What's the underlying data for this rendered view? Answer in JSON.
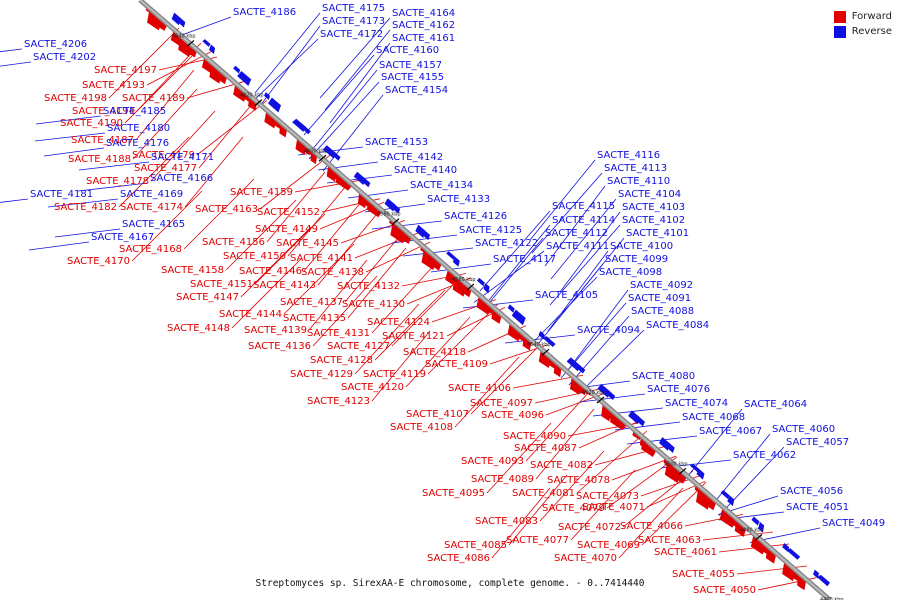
{
  "legend": {
    "forward": "Forward",
    "reverse": "Reverse",
    "forward_color": "#e00000",
    "reverse_color": "#1010e0"
  },
  "caption": "Streptomyces sp. SirexAA-E chromosome, complete genome. - 0..7414440",
  "ticks": [
    "4640 kbp",
    "4620 kbp",
    "4600 kbp",
    "4580 kbp",
    "4560 kbp",
    "4540 kbp",
    "4520 kbp",
    "4500 kbp",
    "4480 kbp",
    "4460 kbp"
  ],
  "forward_labels": [
    "SACTE_4197",
    "SACTE_4193",
    "SACTE_4198",
    "SACTE_4189",
    "SACTE_4194",
    "SACTE_4190",
    "SACTE_4187",
    "SACTE_4188",
    "SACTE_4179",
    "SACTE_4177",
    "SACTE_4178",
    "SACTE_4182",
    "SACTE_4174",
    "SACTE_4159",
    "SACTE_4163",
    "SACTE_4152",
    "SACTE_4149",
    "SACTE_4168",
    "SACTE_4156",
    "SACTE_4145",
    "SACTE_4170",
    "SACTE_4150",
    "SACTE_4141",
    "SACTE_4158",
    "SACTE_4146",
    "SACTE_4138",
    "SACTE_4151",
    "SACTE_4143",
    "SACTE_4132",
    "SACTE_4147",
    "SACTE_4137",
    "SACTE_4130",
    "SACTE_4144",
    "SACTE_4135",
    "SACTE_4124",
    "SACTE_4148",
    "SACTE_4139",
    "SACTE_4131",
    "SACTE_4127",
    "SACTE_4121",
    "SACTE_4136",
    "SACTE_4128",
    "SACTE_4118",
    "SACTE_4129",
    "SACTE_4119",
    "SACTE_4109",
    "SACTE_4120",
    "SACTE_4106",
    "SACTE_4123",
    "SACTE_4097",
    "SACTE_4107",
    "SACTE_4096",
    "SACTE_4108",
    "SACTE_4090",
    "SACTE_4087",
    "SACTE_4093",
    "SACTE_4082",
    "SACTE_4089",
    "SACTE_4078",
    "SACTE_4081",
    "SACTE_4073",
    "SACTE_4095",
    "SACTE_4079",
    "SACTE_4071",
    "SACTE_4083",
    "SACTE_4072",
    "SACTE_4066",
    "SACTE_4077",
    "SACTE_4063",
    "SACTE_4085",
    "SACTE_4069",
    "SACTE_4061",
    "SACTE_4086",
    "SACTE_4070",
    "SACTE_4055",
    "SACTE_4050"
  ],
  "reverse_labels": [
    "SACTE_4186",
    "SACTE_4175",
    "SACTE_4164",
    "SACTE_4173",
    "SACTE_4162",
    "SACTE_4172",
    "SACTE_4161",
    "SACTE_4206",
    "SACTE_4160",
    "SACTE_4202",
    "SACTE_4157",
    "SACTE_4155",
    "SACTE_4154",
    "SACTE_4185",
    "SACTE_4180",
    "SACTE_4176",
    "SACTE_4153",
    "SACTE_4171",
    "SACTE_4142",
    "SACTE_4140",
    "SACTE_4166",
    "SACTE_4134",
    "SACTE_4181",
    "SACTE_4169",
    "SACTE_4133",
    "SACTE_4165",
    "SACTE_4126",
    "SACTE_4167",
    "SACTE_4125",
    "SACTE_4122",
    "SACTE_4117",
    "SACTE_4116",
    "SACTE_4113",
    "SACTE_4110",
    "SACTE_4104",
    "SACTE_4115",
    "SACTE_4103",
    "SACTE_4114",
    "SACTE_4102",
    "SACTE_4112",
    "SACTE_4101",
    "SACTE_4111",
    "SACTE_4100",
    "SACTE_4099",
    "SACTE_4098",
    "SACTE_4092",
    "SACTE_4091",
    "SACTE_4105",
    "SACTE_4088",
    "SACTE_4084",
    "SACTE_4094",
    "SACTE_4080",
    "SACTE_4076",
    "SACTE_4074",
    "SACTE_4064",
    "SACTE_4068",
    "SACTE_4067",
    "SACTE_4060",
    "SACTE_4057",
    "SACTE_4062",
    "SACTE_4056",
    "SACTE_4051",
    "SACTE_4049"
  ]
}
